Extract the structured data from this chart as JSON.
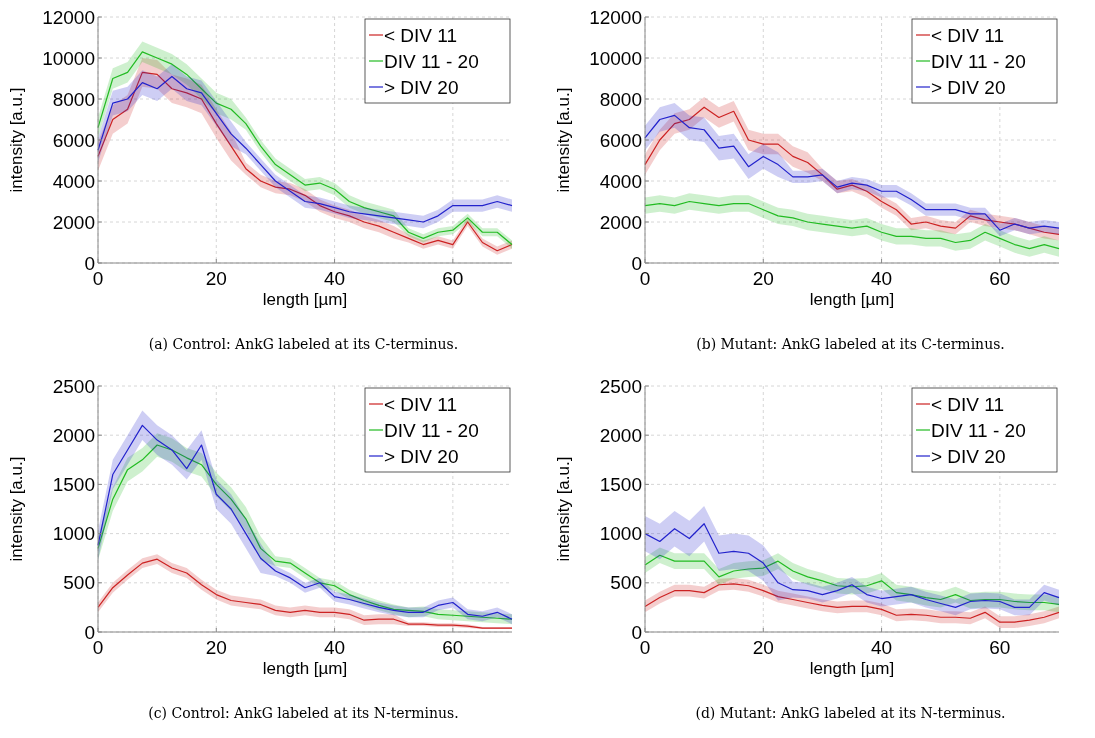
{
  "chart_data": [
    {
      "type": "line",
      "title": "(a) Control: AnkG labeled at its C-terminus.",
      "xlabel": "length [µm]",
      "ylabel": "intensity [a.u.]",
      "xlim": [
        0,
        70
      ],
      "xticks": [
        0,
        20,
        40,
        60
      ],
      "ylim": [
        0,
        12000
      ],
      "yticks": [
        0,
        2000,
        4000,
        6000,
        8000,
        10000,
        12000
      ],
      "grid": true,
      "legend": "top right",
      "line_style": "solid",
      "x": [
        0,
        2.5,
        5,
        7.5,
        10,
        12.5,
        15,
        17.5,
        20,
        22.5,
        25,
        27.5,
        30,
        32.5,
        35,
        37.5,
        40,
        42.5,
        45,
        47.5,
        50,
        52.5,
        55,
        57.5,
        60,
        62.5,
        65,
        67.5,
        70
      ],
      "series": [
        {
          "name": "< DIV 11",
          "color": "#cc2222",
          "values": [
            5200,
            7000,
            7500,
            9300,
            9200,
            8500,
            8300,
            8000,
            6800,
            5700,
            4600,
            4000,
            3700,
            3600,
            3300,
            2800,
            2500,
            2300,
            2000,
            1800,
            1500,
            1200,
            900,
            1100,
            900,
            2000,
            1000,
            600,
            900
          ],
          "lower": [
            4500,
            6300,
            6800,
            8600,
            8500,
            7800,
            7600,
            7300,
            6100,
            5000,
            4300,
            3700,
            3400,
            3300,
            3000,
            2500,
            2200,
            2000,
            1700,
            1500,
            1200,
            1000,
            700,
            900,
            700,
            1800,
            800,
            400,
            700
          ],
          "upper": [
            5900,
            7700,
            8200,
            10000,
            9900,
            9200,
            9000,
            8700,
            7500,
            6400,
            4900,
            4300,
            4000,
            3900,
            3600,
            3100,
            2800,
            2600,
            2300,
            2100,
            1800,
            1400,
            1100,
            1300,
            1100,
            2200,
            1200,
            800,
            1100
          ]
        },
        {
          "name": "DIV 11 - 20",
          "color": "#22bb22",
          "values": [
            6600,
            9000,
            9300,
            10300,
            10000,
            9700,
            9200,
            8500,
            7800,
            7500,
            6800,
            5700,
            4800,
            4300,
            3800,
            3900,
            3600,
            3000,
            2700,
            2500,
            2300,
            1500,
            1200,
            1500,
            1600,
            2200,
            1500,
            1500,
            900
          ],
          "lower": [
            6100,
            8500,
            8800,
            9800,
            9500,
            9200,
            8700,
            8000,
            7300,
            7000,
            6500,
            5400,
            4500,
            4000,
            3500,
            3600,
            3300,
            2700,
            2400,
            2200,
            2000,
            1300,
            1000,
            1300,
            1400,
            2000,
            1300,
            1300,
            700
          ],
          "upper": [
            7100,
            9500,
            9800,
            10800,
            10500,
            10200,
            9700,
            9000,
            8300,
            8000,
            7100,
            6000,
            5100,
            4600,
            4100,
            4200,
            3900,
            3300,
            3000,
            2800,
            2600,
            1700,
            1400,
            1700,
            1800,
            2400,
            1700,
            1700,
            1100
          ]
        },
        {
          "name": "> DIV 20",
          "color": "#2222cc",
          "values": [
            5500,
            7800,
            8000,
            8800,
            8500,
            9100,
            8500,
            8300,
            7300,
            6300,
            5600,
            4800,
            4000,
            3500,
            3000,
            2900,
            2700,
            2500,
            2400,
            2300,
            2200,
            2100,
            2000,
            2300,
            2800,
            2800,
            2800,
            3000,
            2800
          ],
          "lower": [
            4900,
            7200,
            7400,
            8200,
            7900,
            8500,
            7900,
            7700,
            6700,
            5700,
            5300,
            4500,
            3700,
            3200,
            2700,
            2600,
            2400,
            2200,
            2100,
            2000,
            1900,
            1800,
            1700,
            2000,
            2500,
            2500,
            2500,
            2700,
            2500
          ],
          "upper": [
            6100,
            8400,
            8600,
            9400,
            9100,
            9700,
            9100,
            8900,
            7900,
            6900,
            5900,
            5100,
            4300,
            3800,
            3300,
            3200,
            3000,
            2800,
            2700,
            2600,
            2500,
            2400,
            2300,
            2600,
            3100,
            3100,
            3100,
            3300,
            3100
          ]
        }
      ]
    },
    {
      "type": "line",
      "title": "(b) Mutant: AnkG labeled at its C-terminus.",
      "xlabel": "length [µm]",
      "ylabel": "intensity [a.u.]",
      "xlim": [
        0,
        70
      ],
      "xticks": [
        0,
        20,
        40,
        60
      ],
      "ylim": [
        0,
        12000
      ],
      "yticks": [
        0,
        2000,
        4000,
        6000,
        8000,
        10000,
        12000
      ],
      "grid": true,
      "legend": "top right",
      "line_style": "solid",
      "x": [
        0,
        2.5,
        5,
        7.5,
        10,
        12.5,
        15,
        17.5,
        20,
        22.5,
        25,
        27.5,
        30,
        32.5,
        35,
        37.5,
        40,
        42.5,
        45,
        47.5,
        50,
        52.5,
        55,
        57.5,
        60,
        62.5,
        65,
        67.5,
        70
      ],
      "series": [
        {
          "name": "< DIV 11",
          "color": "#cc2222",
          "values": [
            4800,
            6000,
            6800,
            7000,
            7600,
            7100,
            7400,
            6000,
            5800,
            5800,
            5200,
            4900,
            4300,
            3600,
            3800,
            3500,
            3000,
            2600,
            1900,
            2000,
            1800,
            1700,
            2300,
            2100,
            2000,
            1900,
            1700,
            1500,
            1400
          ],
          "lower": [
            4300,
            5500,
            6300,
            6500,
            7100,
            6600,
            6900,
            5500,
            5300,
            5300,
            4700,
            4400,
            4000,
            3400,
            3500,
            3200,
            2700,
            2300,
            1600,
            1700,
            1500,
            1400,
            2000,
            1800,
            1700,
            1600,
            1400,
            1200,
            1100
          ],
          "upper": [
            5300,
            6500,
            7300,
            7500,
            8100,
            7600,
            7900,
            6500,
            6300,
            6300,
            5700,
            5400,
            4600,
            4000,
            4100,
            3800,
            3300,
            2900,
            2200,
            2300,
            2100,
            2000,
            2600,
            2400,
            2300,
            2200,
            2000,
            1800,
            1700
          ]
        },
        {
          "name": "DIV 11 - 20",
          "color": "#22bb22",
          "values": [
            2800,
            2900,
            2800,
            3000,
            2900,
            2800,
            2900,
            2900,
            2600,
            2300,
            2200,
            2000,
            1900,
            1800,
            1700,
            1800,
            1500,
            1300,
            1300,
            1200,
            1200,
            1000,
            1100,
            1500,
            1200,
            900,
            700,
            900,
            700
          ],
          "lower": [
            2400,
            2500,
            2400,
            2600,
            2500,
            2400,
            2500,
            2500,
            2200,
            1900,
            1800,
            1600,
            1500,
            1400,
            1300,
            1400,
            1100,
            900,
            900,
            800,
            800,
            600,
            700,
            1100,
            800,
            500,
            300,
            500,
            300
          ],
          "upper": [
            3200,
            3300,
            3200,
            3400,
            3300,
            3200,
            3300,
            3300,
            3000,
            2700,
            2600,
            2400,
            2300,
            2200,
            2100,
            2200,
            1900,
            1700,
            1700,
            1600,
            1600,
            1400,
            1500,
            1900,
            1600,
            1300,
            1100,
            1300,
            1100
          ]
        },
        {
          "name": "> DIV 20",
          "color": "#2222cc",
          "values": [
            6100,
            7000,
            7200,
            6600,
            6500,
            5600,
            5700,
            4700,
            5200,
            4800,
            4200,
            4200,
            4300,
            3700,
            3900,
            3800,
            3500,
            3500,
            3100,
            2600,
            2600,
            2600,
            2400,
            2400,
            1600,
            1900,
            1700,
            1800,
            1700
          ],
          "lower": [
            5500,
            6400,
            6600,
            6000,
            5900,
            5000,
            5100,
            4100,
            4600,
            4200,
            3900,
            3900,
            4000,
            3400,
            3600,
            3500,
            3200,
            3200,
            2800,
            2300,
            2300,
            2300,
            2100,
            2100,
            1300,
            1600,
            1400,
            1500,
            1400
          ],
          "upper": [
            6700,
            7600,
            7800,
            7200,
            7100,
            6200,
            6300,
            5300,
            5800,
            5400,
            4500,
            4500,
            4600,
            4000,
            4200,
            4100,
            3800,
            3800,
            3400,
            2900,
            2900,
            2900,
            2700,
            2700,
            1900,
            2200,
            2000,
            2100,
            2000
          ]
        }
      ]
    },
    {
      "type": "line",
      "title": "(c) Control: AnkG labeled at its N-terminus.",
      "xlabel": "length [µm]",
      "ylabel": "intensity [a.u.]",
      "xlim": [
        0,
        70
      ],
      "xticks": [
        0,
        20,
        40,
        60
      ],
      "ylim": [
        0,
        2500
      ],
      "yticks": [
        0,
        500,
        1000,
        1500,
        2000,
        2500
      ],
      "grid": true,
      "legend": "top right",
      "line_style": "solid",
      "x": [
        0,
        2.5,
        5,
        7.5,
        10,
        12.5,
        15,
        17.5,
        20,
        22.5,
        25,
        27.5,
        30,
        32.5,
        35,
        37.5,
        40,
        42.5,
        45,
        47.5,
        50,
        52.5,
        55,
        57.5,
        60,
        62.5,
        65,
        67.5,
        70
      ],
      "series": [
        {
          "name": "< DIV 11",
          "color": "#cc2222",
          "values": [
            250,
            450,
            580,
            700,
            740,
            650,
            600,
            480,
            380,
            320,
            300,
            280,
            220,
            200,
            220,
            200,
            200,
            180,
            120,
            130,
            130,
            80,
            80,
            70,
            70,
            60,
            40,
            40,
            40
          ],
          "lower": [
            200,
            400,
            530,
            650,
            690,
            600,
            550,
            430,
            330,
            270,
            250,
            230,
            170,
            150,
            170,
            150,
            150,
            130,
            70,
            80,
            80,
            60,
            60,
            50,
            50,
            40,
            30,
            30,
            30
          ],
          "upper": [
            300,
            500,
            630,
            750,
            790,
            700,
            650,
            530,
            430,
            370,
            350,
            330,
            270,
            250,
            270,
            250,
            250,
            230,
            170,
            180,
            180,
            100,
            100,
            90,
            90,
            80,
            50,
            50,
            50
          ]
        },
        {
          "name": "DIV 11 - 20",
          "color": "#22bb22",
          "values": [
            850,
            1350,
            1650,
            1750,
            1900,
            1850,
            1770,
            1700,
            1500,
            1350,
            1150,
            850,
            720,
            700,
            600,
            500,
            470,
            380,
            320,
            270,
            230,
            220,
            210,
            180,
            170,
            160,
            150,
            140,
            130
          ],
          "lower": [
            730,
            1230,
            1530,
            1630,
            1780,
            1730,
            1630,
            1580,
            1380,
            1230,
            1030,
            730,
            670,
            650,
            550,
            450,
            420,
            330,
            270,
            220,
            180,
            150,
            160,
            130,
            120,
            110,
            100,
            90,
            80
          ],
          "upper": [
            970,
            1470,
            1770,
            1870,
            2020,
            1970,
            1870,
            1820,
            1620,
            1470,
            1270,
            970,
            770,
            750,
            650,
            550,
            520,
            430,
            370,
            320,
            280,
            250,
            260,
            230,
            220,
            210,
            200,
            190,
            180
          ]
        },
        {
          "name": "> DIV 20",
          "color": "#2222cc",
          "values": [
            880,
            1600,
            1850,
            2100,
            1950,
            1850,
            1660,
            1900,
            1400,
            1250,
            1000,
            750,
            620,
            550,
            450,
            500,
            360,
            330,
            290,
            250,
            220,
            200,
            200,
            270,
            300,
            180,
            160,
            200,
            130
          ],
          "lower": [
            730,
            1450,
            1700,
            1950,
            1800,
            1700,
            1550,
            1750,
            1250,
            1100,
            850,
            600,
            570,
            500,
            400,
            450,
            310,
            280,
            240,
            200,
            170,
            150,
            150,
            220,
            250,
            130,
            110,
            150,
            80
          ],
          "upper": [
            1030,
            1750,
            2000,
            2250,
            2100,
            2000,
            1850,
            2050,
            1550,
            1400,
            1150,
            900,
            670,
            600,
            500,
            550,
            410,
            380,
            340,
            300,
            270,
            250,
            250,
            320,
            350,
            230,
            210,
            250,
            180
          ]
        }
      ]
    },
    {
      "type": "line",
      "title": "(d) Mutant: AnkG labeled at its N-terminus.",
      "xlabel": "length [µm]",
      "ylabel": "intensity [a.u.]",
      "xlim": [
        0,
        70
      ],
      "xticks": [
        0,
        20,
        40,
        60
      ],
      "ylim": [
        0,
        2500
      ],
      "yticks": [
        0,
        500,
        1000,
        1500,
        2000,
        2500
      ],
      "grid": true,
      "legend": "top right",
      "line_style": "solid",
      "x": [
        0,
        2.5,
        5,
        7.5,
        10,
        12.5,
        15,
        17.5,
        20,
        22.5,
        25,
        27.5,
        30,
        32.5,
        35,
        37.5,
        40,
        42.5,
        45,
        47.5,
        50,
        52.5,
        55,
        57.5,
        60,
        62.5,
        65,
        67.5,
        70
      ],
      "series": [
        {
          "name": "< DIV 11",
          "color": "#cc2222",
          "values": [
            260,
            350,
            420,
            420,
            400,
            480,
            490,
            470,
            420,
            360,
            330,
            300,
            270,
            250,
            260,
            260,
            230,
            170,
            180,
            170,
            150,
            150,
            140,
            200,
            100,
            100,
            120,
            150,
            200
          ],
          "lower": [
            200,
            290,
            360,
            360,
            340,
            420,
            430,
            410,
            360,
            300,
            270,
            240,
            210,
            190,
            200,
            200,
            170,
            110,
            120,
            110,
            90,
            90,
            80,
            140,
            40,
            40,
            60,
            90,
            140
          ],
          "upper": [
            320,
            410,
            480,
            480,
            460,
            540,
            550,
            530,
            480,
            420,
            390,
            360,
            330,
            310,
            320,
            320,
            290,
            230,
            240,
            230,
            210,
            210,
            200,
            260,
            160,
            160,
            180,
            210,
            260
          ]
        },
        {
          "name": "DIV 11 - 20",
          "color": "#22bb22",
          "values": [
            680,
            780,
            720,
            720,
            720,
            560,
            620,
            640,
            650,
            720,
            620,
            560,
            520,
            470,
            460,
            470,
            520,
            400,
            380,
            350,
            330,
            380,
            320,
            330,
            330,
            310,
            300,
            300,
            280
          ],
          "lower": [
            600,
            700,
            640,
            640,
            640,
            480,
            540,
            560,
            570,
            640,
            540,
            480,
            440,
            390,
            380,
            390,
            440,
            320,
            300,
            270,
            250,
            300,
            240,
            250,
            250,
            230,
            220,
            220,
            200
          ],
          "upper": [
            760,
            860,
            800,
            800,
            800,
            640,
            700,
            720,
            730,
            800,
            700,
            640,
            600,
            550,
            540,
            550,
            600,
            480,
            460,
            430,
            410,
            460,
            400,
            410,
            410,
            390,
            380,
            380,
            360
          ]
        },
        {
          "name": "> DIV 20",
          "color": "#2222cc",
          "values": [
            1000,
            920,
            1050,
            950,
            1100,
            800,
            820,
            800,
            700,
            500,
            430,
            420,
            380,
            420,
            480,
            380,
            340,
            360,
            380,
            330,
            290,
            250,
            310,
            320,
            310,
            250,
            250,
            400,
            350
          ],
          "lower": [
            820,
            740,
            870,
            770,
            920,
            620,
            640,
            620,
            520,
            320,
            350,
            340,
            300,
            340,
            400,
            300,
            260,
            280,
            300,
            250,
            210,
            170,
            230,
            240,
            230,
            170,
            170,
            320,
            270
          ],
          "upper": [
            1180,
            1100,
            1230,
            1130,
            1280,
            980,
            1000,
            980,
            880,
            680,
            510,
            500,
            460,
            500,
            560,
            460,
            420,
            440,
            460,
            410,
            370,
            330,
            390,
            400,
            390,
            330,
            330,
            480,
            430
          ]
        }
      ]
    }
  ]
}
